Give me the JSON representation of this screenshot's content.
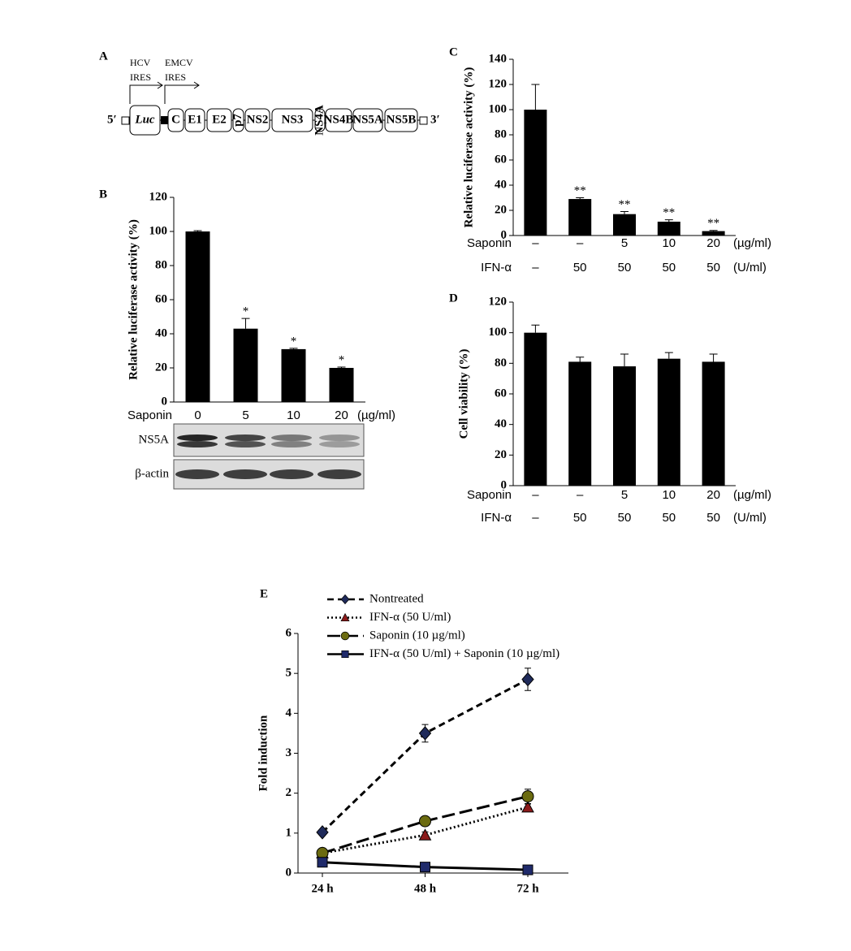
{
  "construct": {
    "label": "A",
    "hcv_ires": [
      "HCV",
      "IRES"
    ],
    "emcv_ires": [
      "EMCV",
      "IRES"
    ],
    "five_prime": "5′",
    "three_prime": "3′",
    "segments": [
      "Luc",
      "C",
      "E1",
      "E2",
      "p7",
      "NS2",
      "NS3",
      "NS4A",
      "NS4B",
      "NS5A",
      "NS5B"
    ]
  },
  "blot": {
    "rows": [
      "NS5A",
      "β-actin"
    ]
  },
  "chart_data": [
    {
      "type": "bar",
      "label": "B",
      "y_label": "Relative luciferase activity (%)",
      "color": "#000000",
      "rows": [
        {
          "name": "Saponin",
          "labels": [
            "0",
            "5",
            "10",
            "20"
          ],
          "unit": "(µg/ml)"
        }
      ],
      "values": [
        100,
        43,
        31,
        20
      ],
      "errors": [
        0.5,
        6,
        0.5,
        0.5
      ],
      "annotations": [
        null,
        "*",
        "*",
        "*"
      ],
      "ylim": [
        0,
        120
      ],
      "yticks": [
        0,
        20,
        40,
        60,
        80,
        100,
        120
      ]
    },
    {
      "type": "bar",
      "label": "C",
      "y_label": "Relative luciferase activity (%)",
      "color": "#000000",
      "rows": [
        {
          "name": "Saponin",
          "labels": [
            "–",
            "–",
            "5",
            "10",
            "20"
          ],
          "unit": "(µg/ml)"
        },
        {
          "name": "IFN-α",
          "labels": [
            "–",
            "50",
            "50",
            "50",
            "50"
          ],
          "unit": "(U/ml)"
        }
      ],
      "values": [
        100,
        29,
        17,
        11,
        3.5
      ],
      "errors": [
        20,
        1,
        2,
        1.5,
        0.5
      ],
      "annotations": [
        null,
        "**",
        "**",
        "**",
        "**"
      ],
      "ylim": [
        0,
        140
      ],
      "yticks": [
        0,
        20,
        40,
        60,
        80,
        100,
        120,
        140
      ]
    },
    {
      "type": "bar",
      "label": "D",
      "y_label": "Cell viability (%)",
      "color": "#000000",
      "rows": [
        {
          "name": "Saponin",
          "labels": [
            "–",
            "–",
            "5",
            "10",
            "20"
          ],
          "unit": "(µg/ml)"
        },
        {
          "name": "IFN-α",
          "labels": [
            "–",
            "50",
            "50",
            "50",
            "50"
          ],
          "unit": "(U/ml)"
        }
      ],
      "values": [
        100,
        81,
        78,
        83,
        81
      ],
      "errors": [
        5,
        3,
        8,
        4,
        5
      ],
      "ylim": [
        0,
        120
      ],
      "yticks": [
        0,
        20,
        40,
        60,
        80,
        100,
        120
      ]
    },
    {
      "type": "line",
      "label": "E",
      "y_label": "Fold induction",
      "categories": [
        "24 h",
        "48 h",
        "72 h"
      ],
      "series": [
        {
          "name": "Nontreated",
          "color": "#1f2a5a",
          "marker": "diamond",
          "dash": "8,5",
          "values": [
            1.02,
            3.5,
            4.85
          ],
          "errors": [
            0.05,
            0.22,
            0.28
          ]
        },
        {
          "name": "IFN-α (50 U/ml)",
          "color": "#8b1a1a",
          "marker": "triangle",
          "dash": "2,3",
          "values": [
            0.5,
            0.95,
            1.65
          ],
          "errors": [
            0.05,
            0.08,
            0.08
          ]
        },
        {
          "name": "Saponin (10 µg/ml)",
          "color": "#4a4a10",
          "marker": "circle",
          "dash": "16,6",
          "values": [
            0.5,
            1.3,
            1.92
          ],
          "errors": [
            0.05,
            0.08,
            0.18
          ]
        },
        {
          "name": "IFN-α (50 U/ml) + Saponin (10 µg/ml)",
          "color": "#1f2a6a",
          "marker": "square",
          "dash": "none",
          "values": [
            0.27,
            0.15,
            0.08
          ],
          "errors": [
            0.03,
            0.03,
            0.02
          ]
        }
      ],
      "ylim": [
        0,
        6
      ],
      "yticks": [
        0,
        1,
        2,
        3,
        4,
        5,
        6
      ]
    }
  ]
}
